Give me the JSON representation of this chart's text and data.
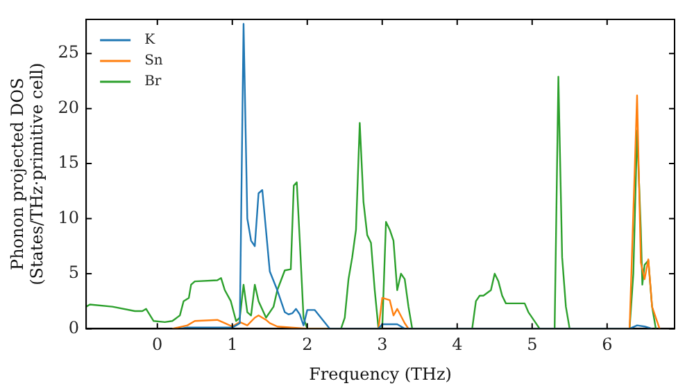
{
  "chart_data": {
    "type": "line",
    "xlabel": "Frequency (THz)",
    "ylabel": "Phonon projected DOS\n(States/THz·primitive cell)",
    "xlim": [
      -0.95,
      6.9
    ],
    "ylim": [
      0,
      28.1
    ],
    "xticks": [
      0,
      1,
      2,
      3,
      4,
      5,
      6
    ],
    "yticks": [
      0,
      5,
      10,
      15,
      20,
      25
    ],
    "grid": false,
    "legend": "top left",
    "marker": "none",
    "line_style": "solid",
    "series": [
      {
        "name": "K",
        "color": "#1f77b4",
        "x": [
          0.3,
          0.4,
          1.0,
          1.05,
          1.1,
          1.15,
          1.2,
          1.25,
          1.3,
          1.35,
          1.4,
          1.5,
          1.6,
          1.7,
          1.75,
          1.8,
          1.85,
          1.9,
          1.95,
          2.0,
          2.1,
          2.3,
          2.95,
          3.0,
          3.2,
          3.3,
          6.3,
          6.4,
          6.5,
          6.6
        ],
        "values": [
          0,
          0.1,
          0.1,
          0.3,
          0.5,
          27.7,
          10,
          8,
          7.5,
          12.3,
          12.6,
          5.2,
          3.5,
          1.5,
          1.3,
          1.4,
          1.8,
          1.3,
          0.3,
          1.7,
          1.7,
          0,
          0,
          0.4,
          0.4,
          0,
          0,
          0.3,
          0.2,
          0
        ]
      },
      {
        "name": "Sn",
        "color": "#ff7f0e",
        "x": [
          0.2,
          0.4,
          0.5,
          0.8,
          0.9,
          1.0,
          1.1,
          1.2,
          1.3,
          1.35,
          1.45,
          1.5,
          1.6,
          2.0,
          2.95,
          3.0,
          3.1,
          3.15,
          3.2,
          3.3,
          3.35,
          6.3,
          6.4,
          6.45,
          6.5,
          6.55,
          6.6,
          6.7
        ],
        "values": [
          0,
          0.3,
          0.7,
          0.8,
          0.5,
          0.2,
          0.6,
          0.3,
          1.0,
          1.2,
          0.8,
          0.5,
          0.2,
          0,
          0,
          2.8,
          2.6,
          1.2,
          1.8,
          0.5,
          0,
          0,
          21.2,
          6,
          4.5,
          6.3,
          2,
          0
        ]
      },
      {
        "name": "Br",
        "color": "#2ca02c",
        "x": [
          -0.95,
          -0.9,
          -0.6,
          -0.3,
          -0.2,
          -0.15,
          -0.05,
          0.1,
          0.2,
          0.3,
          0.35,
          0.42,
          0.45,
          0.5,
          0.8,
          0.85,
          0.9,
          0.98,
          1.05,
          1.1,
          1.15,
          1.2,
          1.25,
          1.3,
          1.35,
          1.45,
          1.55,
          1.6,
          1.7,
          1.78,
          1.82,
          1.86,
          1.9,
          1.95,
          2.0,
          2.45,
          2.5,
          2.55,
          2.6,
          2.65,
          2.7,
          2.75,
          2.8,
          2.85,
          2.9,
          2.95,
          3.0,
          3.05,
          3.1,
          3.15,
          3.2,
          3.25,
          3.3,
          3.35,
          3.4,
          4.2,
          4.25,
          4.3,
          4.35,
          4.45,
          4.5,
          4.55,
          4.6,
          4.65,
          4.9,
          4.95,
          5.1,
          5.3,
          5.35,
          5.4,
          5.45,
          5.5,
          6.3,
          6.35,
          6.4,
          6.45,
          6.47,
          6.5,
          6.55,
          6.6,
          6.65
        ],
        "values": [
          2.0,
          2.2,
          2.0,
          1.6,
          1.6,
          1.8,
          0.7,
          0.6,
          0.7,
          1.2,
          2.5,
          2.8,
          4.0,
          4.3,
          4.4,
          4.6,
          3.5,
          2.5,
          0.7,
          1.0,
          4.0,
          1.5,
          1.2,
          4.0,
          2.5,
          1.0,
          2.0,
          3.5,
          5.3,
          5.4,
          13.0,
          13.3,
          8,
          1.0,
          0,
          0,
          1.0,
          4.5,
          6.5,
          9,
          18.7,
          11.5,
          8.5,
          7.8,
          3.5,
          0,
          0,
          9.7,
          9.0,
          8.0,
          3.5,
          5.0,
          4.5,
          2,
          0,
          0,
          2.5,
          3.0,
          3.0,
          3.5,
          5.0,
          4.3,
          3.0,
          2.3,
          2.3,
          1.5,
          0,
          0,
          22.9,
          6.5,
          2.0,
          0,
          0,
          5.0,
          18.0,
          9.0,
          4.0,
          5.8,
          6.2,
          2,
          0
        ]
      }
    ]
  }
}
